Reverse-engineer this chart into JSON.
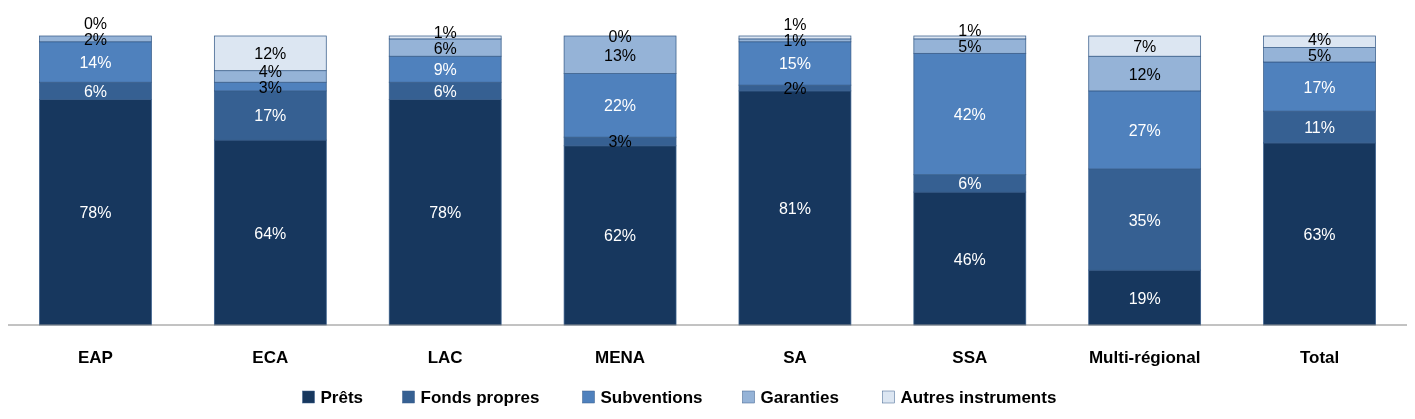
{
  "chart_data": {
    "type": "bar",
    "stacked": true,
    "legend": "bottom",
    "categories": [
      "EAP",
      "ECA",
      "LAC",
      "MENA",
      "SA",
      "SSA",
      "Multi-régional",
      "Total"
    ],
    "series": [
      {
        "name": "Prêts",
        "color": "#17375e",
        "values": [
          78,
          64,
          78,
          62,
          81,
          46,
          19,
          63
        ],
        "value_labels": [
          "78%",
          "64%",
          "78%",
          "62%",
          "81%",
          "46%",
          "19%",
          "63%"
        ]
      },
      {
        "name": "Fonds propres",
        "color": "#366092",
        "values": [
          6,
          17,
          6,
          3,
          2,
          6,
          35,
          11
        ],
        "value_labels": [
          "6%",
          "17%",
          "6%",
          "3%",
          "2%",
          "6%",
          "35%",
          "11%"
        ]
      },
      {
        "name": "Subventions",
        "color": "#4f81bd",
        "values": [
          14,
          3,
          9,
          22,
          15,
          42,
          27,
          17
        ],
        "value_labels": [
          "14%",
          "3%",
          "9%",
          "22%",
          "15%",
          "42%",
          "27%",
          "17%"
        ]
      },
      {
        "name": "Garanties",
        "color": "#95b3d7",
        "values": [
          2,
          4,
          6,
          13,
          1,
          5,
          12,
          5
        ],
        "value_labels": [
          "2%",
          "4%",
          "6%",
          "13%",
          "1%",
          "5%",
          "12%",
          "5%"
        ]
      },
      {
        "name": "Autres instruments",
        "color": "#dce6f2",
        "values": [
          0,
          12,
          1,
          0,
          1,
          1,
          7,
          4
        ],
        "value_labels": [
          "0%",
          "12%",
          "1%",
          "0%",
          "1%",
          "1%",
          "7%",
          "4%"
        ]
      }
    ]
  }
}
